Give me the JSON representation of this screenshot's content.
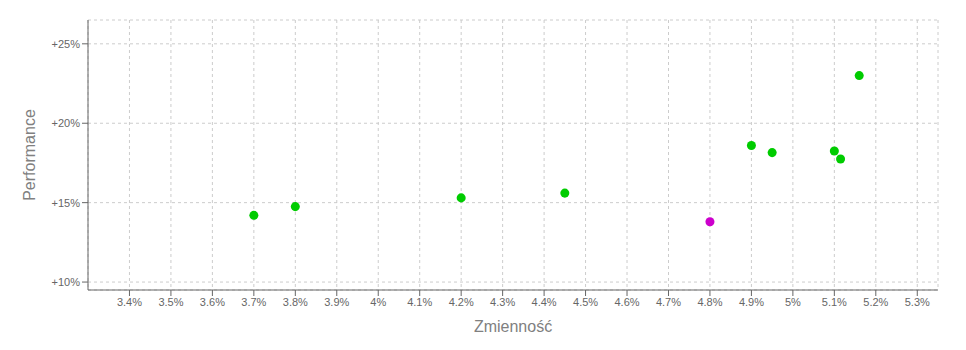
{
  "chart_data": {
    "type": "scatter",
    "xlabel": "Zmienność",
    "ylabel": "Performance",
    "series": [
      {
        "color": "#00cc00",
        "x": [
          3.7,
          3.8,
          4.2,
          4.45,
          4.9,
          4.95,
          5.1,
          5.115,
          5.16
        ],
        "values": [
          14.2,
          14.75,
          15.3,
          15.6,
          18.6,
          18.15,
          18.25,
          17.75,
          23.0
        ]
      },
      {
        "color": "#cc00cc",
        "x": [
          4.8
        ],
        "values": [
          13.8
        ]
      }
    ],
    "xlim": [
      3.3,
      5.35
    ],
    "ylim": [
      9.5,
      26.5
    ],
    "xticks": [
      {
        "value": 3.4,
        "label": "3.4%"
      },
      {
        "value": 3.5,
        "label": "3.5%"
      },
      {
        "value": 3.6,
        "label": "3.6%"
      },
      {
        "value": 3.7,
        "label": "3.7%"
      },
      {
        "value": 3.8,
        "label": "3.8%"
      },
      {
        "value": 3.9,
        "label": "3.9%"
      },
      {
        "value": 4,
        "label": "4%"
      },
      {
        "value": 4.1,
        "label": "4.1%"
      },
      {
        "value": 4.2,
        "label": "4.2%"
      },
      {
        "value": 4.3,
        "label": "4.3%"
      },
      {
        "value": 4.4,
        "label": "4.4%"
      },
      {
        "value": 4.5,
        "label": "4.5%"
      },
      {
        "value": 4.6,
        "label": "4.6%"
      },
      {
        "value": 4.7,
        "label": "4.7%"
      },
      {
        "value": 4.8,
        "label": "4.8%"
      },
      {
        "value": 4.9,
        "label": "4.9%"
      },
      {
        "value": 5,
        "label": "5%"
      },
      {
        "value": 5.1,
        "label": "5.1%"
      },
      {
        "value": 5.2,
        "label": "5.2%"
      },
      {
        "value": 5.3,
        "label": "5.3%"
      }
    ],
    "yticks": [
      {
        "value": 10,
        "label": "+10%"
      },
      {
        "value": 15,
        "label": "+15%"
      },
      {
        "value": 20,
        "label": "+20%"
      },
      {
        "value": 25,
        "label": "+25%"
      }
    ],
    "grid": true
  }
}
